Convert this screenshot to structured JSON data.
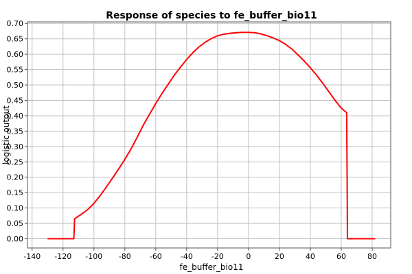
{
  "chart_data": {
    "type": "line",
    "title": "Response of species to fe_buffer_bio11",
    "xlabel": "fe_buffer_bio11",
    "ylabel": "logistic output",
    "xlim": [
      -143,
      92
    ],
    "ylim": [
      -0.03,
      0.705
    ],
    "x_ticks": [
      -140,
      -120,
      -100,
      -80,
      -60,
      -40,
      -20,
      0,
      20,
      40,
      60,
      80
    ],
    "y_ticks": [
      0.0,
      0.05,
      0.1,
      0.15,
      0.2,
      0.25,
      0.3,
      0.35,
      0.4,
      0.45,
      0.5,
      0.55,
      0.6,
      0.65,
      0.7
    ],
    "grid": true,
    "series": [
      {
        "color": "#ff0000",
        "x": [
          -130,
          -113,
          -112.5,
          -108,
          -104,
          -100,
          -96,
          -92,
          -88,
          -84,
          -80,
          -76,
          -72,
          -68,
          -64,
          -60,
          -56,
          -52,
          -48,
          -44,
          -40,
          -36,
          -32,
          -28,
          -24,
          -20,
          -16,
          -12,
          -8,
          -4,
          0,
          4,
          8,
          12,
          16,
          20,
          24,
          28,
          32,
          36,
          40,
          44,
          48,
          52,
          56,
          60,
          63.5,
          63.8,
          64,
          82
        ],
        "y": [
          0.0,
          0.0,
          0.065,
          0.08,
          0.095,
          0.115,
          0.14,
          0.168,
          0.197,
          0.227,
          0.258,
          0.292,
          0.33,
          0.37,
          0.405,
          0.44,
          0.472,
          0.502,
          0.532,
          0.558,
          0.583,
          0.605,
          0.624,
          0.639,
          0.651,
          0.66,
          0.665,
          0.668,
          0.67,
          0.671,
          0.671,
          0.67,
          0.666,
          0.66,
          0.653,
          0.644,
          0.632,
          0.617,
          0.598,
          0.578,
          0.556,
          0.532,
          0.506,
          0.478,
          0.45,
          0.425,
          0.41,
          0.2,
          0.0,
          0.0
        ]
      }
    ]
  }
}
